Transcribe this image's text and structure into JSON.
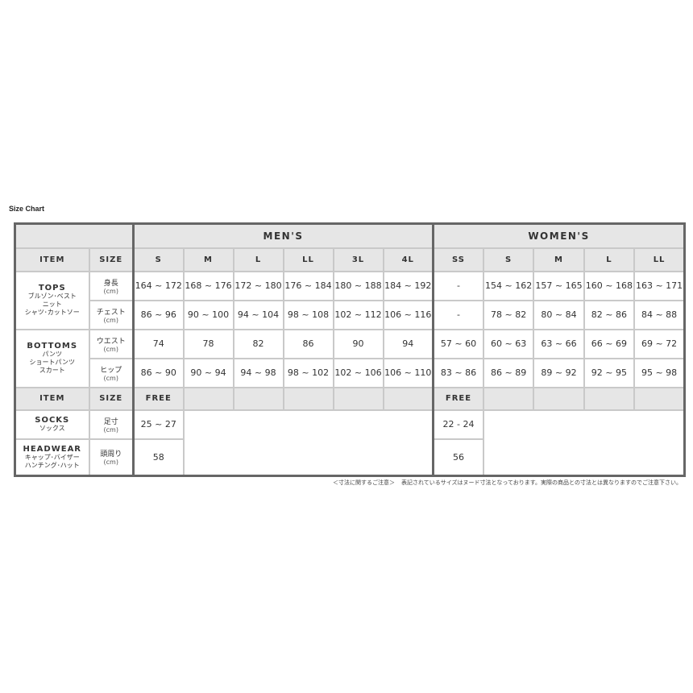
{
  "title": "Size Chart",
  "headers": {
    "mens": "MEN'S",
    "womens": "WOMEN'S",
    "item": "ITEM",
    "size": "SIZE",
    "free": "FREE"
  },
  "mens_sizes": [
    "S",
    "M",
    "L",
    "LL",
    "3L",
    "4L"
  ],
  "womens_sizes": [
    "SS",
    "S",
    "M",
    "L",
    "LL"
  ],
  "tops": {
    "name": "TOPS",
    "jp": [
      "ブルゾン･ベスト",
      "ニット",
      "シャツ･カットソー"
    ],
    "rows": [
      {
        "label": "身長",
        "unit": "(cm)",
        "mens": [
          "164 ~ 172",
          "168 ~ 176",
          "172 ~ 180",
          "176 ~ 184",
          "180 ~ 188",
          "184 ~ 192"
        ],
        "womens": [
          "-",
          "154 ~ 162",
          "157 ~ 165",
          "160 ~ 168",
          "163 ~ 171"
        ]
      },
      {
        "label": "チェスト",
        "unit": "(cm)",
        "mens": [
          "86 ~ 96",
          "90 ~ 100",
          "94 ~ 104",
          "98 ~ 108",
          "102 ~ 112",
          "106 ~ 116"
        ],
        "womens": [
          "-",
          "78 ~ 82",
          "80 ~ 84",
          "82 ~ 86",
          "84 ~ 88"
        ]
      }
    ]
  },
  "bottoms": {
    "name": "BOTTOMS",
    "jp": [
      "パンツ",
      "ショートパンツ",
      "スカート"
    ],
    "rows": [
      {
        "label": "ウエスト",
        "unit": "(cm)",
        "mens": [
          "74",
          "78",
          "82",
          "86",
          "90",
          "94"
        ],
        "womens": [
          "57 ~ 60",
          "60 ~ 63",
          "63 ~ 66",
          "66 ~ 69",
          "69 ~ 72"
        ]
      },
      {
        "label": "ヒップ",
        "unit": "(cm)",
        "mens": [
          "86 ~ 90",
          "90 ~ 94",
          "94 ~ 98",
          "98 ~ 102",
          "102 ~ 106",
          "106 ~ 110"
        ],
        "womens": [
          "83 ~ 86",
          "86 ~ 89",
          "89 ~ 92",
          "92 ~ 95",
          "95 ~ 98"
        ]
      }
    ]
  },
  "socks": {
    "name": "SOCKS",
    "jp": "ソックス",
    "label": "足寸",
    "unit": "(cm)",
    "mens": "25 ~ 27",
    "womens": "22 - 24"
  },
  "headwear": {
    "name": "HEADWEAR",
    "jp": [
      "キャップ･バイザー",
      "ハンチング･ハット"
    ],
    "label": "頭周り",
    "unit": "(cm)",
    "mens": "58",
    "womens": "56"
  },
  "note": {
    "heading": "＜寸法に関するご注意＞",
    "text": "表記されているサイズはヌード寸法となっております。実際の商品との寸法とは異なりますのでご注意下さい。"
  }
}
